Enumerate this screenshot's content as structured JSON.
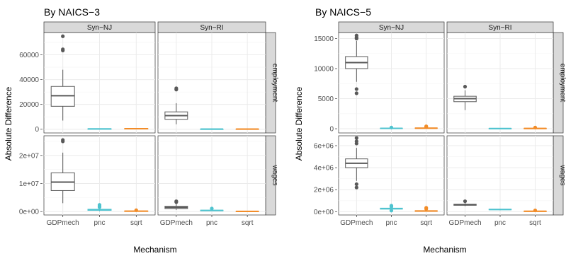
{
  "chart_data": [
    {
      "type": "boxplot",
      "title": "By NAICS−3",
      "xlabel": "Mechanism",
      "ylabel": "Absolute Difference",
      "categories": [
        "GDPmech",
        "pnc",
        "sqrt"
      ],
      "columns": [
        "Syn−NJ",
        "Syn−RI"
      ],
      "rows": [
        {
          "name": "employment",
          "ylim": [
            -3000,
            78000
          ],
          "ticks": [
            0,
            20000,
            40000,
            60000
          ],
          "tick_labels": [
            "0",
            "20000",
            "40000",
            "60000"
          ],
          "minor_ticks": [
            10000,
            30000,
            50000,
            70000
          ],
          "panels": [
            {
              "column": "Syn−NJ",
              "boxes": [
                {
                  "category": "GDPmech",
                  "color": "#595959",
                  "stats": {
                    "min": 7000,
                    "q1": 18500,
                    "median": 27000,
                    "q3": 34500,
                    "max": 48000
                  },
                  "outliers": [
                    63500,
                    64500,
                    75000
                  ]
                },
                {
                  "category": "pnc",
                  "color": "#4fc3cf",
                  "stats": {
                    "min": 50,
                    "q1": 200,
                    "median": 300,
                    "q3": 400,
                    "max": 600
                  },
                  "outliers": []
                },
                {
                  "category": "sqrt",
                  "color": "#f28c28",
                  "stats": {
                    "min": 100,
                    "q1": 250,
                    "median": 400,
                    "q3": 600,
                    "max": 900
                  },
                  "outliers": []
                }
              ]
            },
            {
              "column": "Syn−RI",
              "boxes": [
                {
                  "category": "GDPmech",
                  "color": "#595959",
                  "stats": {
                    "min": 4000,
                    "q1": 8000,
                    "median": 11000,
                    "q3": 14000,
                    "max": 21000
                  },
                  "outliers": [
                    32000,
                    33000
                  ]
                },
                {
                  "category": "pnc",
                  "color": "#4fc3cf",
                  "stats": {
                    "min": 20,
                    "q1": 80,
                    "median": 120,
                    "q3": 180,
                    "max": 300
                  },
                  "outliers": []
                },
                {
                  "category": "sqrt",
                  "color": "#f28c28",
                  "stats": {
                    "min": 30,
                    "q1": 100,
                    "median": 160,
                    "q3": 240,
                    "max": 400
                  },
                  "outliers": []
                }
              ]
            }
          ]
        },
        {
          "name": "wages",
          "ylim": [
            -1200000,
            27000000
          ],
          "ticks": [
            0,
            10000000,
            20000000
          ],
          "tick_labels": [
            "0e+00",
            "1e+07",
            "2e+07"
          ],
          "minor_ticks": [
            5000000,
            15000000,
            25000000
          ],
          "panels": [
            {
              "column": "Syn−NJ",
              "boxes": [
                {
                  "category": "GDPmech",
                  "color": "#595959",
                  "stats": {
                    "min": 3000000,
                    "q1": 7500000,
                    "median": 10500000,
                    "q3": 13800000,
                    "max": 21000000
                  },
                  "outliers": [
                    25000000,
                    25500000
                  ]
                },
                {
                  "category": "pnc",
                  "color": "#4fc3cf",
                  "stats": {
                    "min": 100000,
                    "q1": 450000,
                    "median": 650000,
                    "q3": 850000,
                    "max": 1200000
                  },
                  "outliers": [
                    1600000,
                    2000000,
                    2400000
                  ]
                },
                {
                  "category": "sqrt",
                  "color": "#f28c28",
                  "stats": {
                    "min": 20000,
                    "q1": 80000,
                    "median": 150000,
                    "q3": 250000,
                    "max": 400000
                  },
                  "outliers": [
                    500000
                  ]
                }
              ]
            },
            {
              "column": "Syn−RI",
              "boxes": [
                {
                  "category": "GDPmech",
                  "color": "#595959",
                  "stats": {
                    "min": 600000,
                    "q1": 1100000,
                    "median": 1500000,
                    "q3": 1900000,
                    "max": 2700000
                  },
                  "outliers": [
                    3400000,
                    3700000
                  ]
                },
                {
                  "category": "pnc",
                  "color": "#4fc3cf",
                  "stats": {
                    "min": 150000,
                    "q1": 300000,
                    "median": 400000,
                    "q3": 500000,
                    "max": 700000
                  },
                  "outliers": [
                    1100000
                  ]
                },
                {
                  "category": "sqrt",
                  "color": "#f28c28",
                  "stats": {
                    "min": 20000,
                    "q1": 60000,
                    "median": 100000,
                    "q3": 150000,
                    "max": 250000
                  },
                  "outliers": []
                }
              ]
            }
          ]
        }
      ]
    },
    {
      "type": "boxplot",
      "title": "By NAICS−5",
      "xlabel": "Mechanism",
      "ylabel": "Absolute Difference",
      "categories": [
        "GDPmech",
        "pnc",
        "sqrt"
      ],
      "columns": [
        "Syn−NJ",
        "Syn−RI"
      ],
      "rows": [
        {
          "name": "employment",
          "ylim": [
            -700,
            16000
          ],
          "ticks": [
            0,
            5000,
            10000,
            15000
          ],
          "tick_labels": [
            "0",
            "5000",
            "10000",
            "15000"
          ],
          "minor_ticks": [
            2500,
            7500,
            12500
          ],
          "panels": [
            {
              "column": "Syn−NJ",
              "boxes": [
                {
                  "category": "GDPmech",
                  "color": "#595959",
                  "stats": {
                    "min": 7800,
                    "q1": 10000,
                    "median": 11000,
                    "q3": 12000,
                    "max": 14600
                  },
                  "outliers": [
                    5900,
                    6600,
                    15000,
                    15200,
                    15500
                  ]
                },
                {
                  "category": "pnc",
                  "color": "#4fc3cf",
                  "stats": {
                    "min": 10,
                    "q1": 40,
                    "median": 70,
                    "q3": 100,
                    "max": 150
                  },
                  "outliers": [
                    200
                  ]
                },
                {
                  "category": "sqrt",
                  "color": "#f28c28",
                  "stats": {
                    "min": 10,
                    "q1": 50,
                    "median": 90,
                    "q3": 140,
                    "max": 220
                  },
                  "outliers": [
                    300,
                    400
                  ]
                }
              ]
            },
            {
              "column": "Syn−RI",
              "boxes": [
                {
                  "category": "GDPmech",
                  "color": "#595959",
                  "stats": {
                    "min": 3100,
                    "q1": 4500,
                    "median": 5000,
                    "q3": 5400,
                    "max": 6400
                  },
                  "outliers": [
                    7000
                  ]
                },
                {
                  "category": "pnc",
                  "color": "#4fc3cf",
                  "stats": {
                    "min": 5,
                    "q1": 20,
                    "median": 40,
                    "q3": 60,
                    "max": 90
                  },
                  "outliers": []
                },
                {
                  "category": "sqrt",
                  "color": "#f28c28",
                  "stats": {
                    "min": 5,
                    "q1": 25,
                    "median": 50,
                    "q3": 80,
                    "max": 130
                  },
                  "outliers": [
                    200
                  ]
                }
              ]
            }
          ]
        },
        {
          "name": "wages",
          "ylim": [
            -300000,
            6900000
          ],
          "ticks": [
            0,
            2000000,
            4000000,
            6000000
          ],
          "tick_labels": [
            "0e+00",
            "2e+06",
            "4e+06",
            "6e+06"
          ],
          "minor_ticks": [
            1000000,
            3000000,
            5000000
          ],
          "panels": [
            {
              "column": "Syn−NJ",
              "boxes": [
                {
                  "category": "GDPmech",
                  "color": "#595959",
                  "stats": {
                    "min": 2800000,
                    "q1": 4000000,
                    "median": 4400000,
                    "q3": 4800000,
                    "max": 5800000
                  },
                  "outliers": [
                    2200000,
                    2500000,
                    6200000,
                    6400000,
                    6700000
                  ]
                },
                {
                  "category": "pnc",
                  "color": "#4fc3cf",
                  "stats": {
                    "min": 150000,
                    "q1": 230000,
                    "median": 280000,
                    "q3": 320000,
                    "max": 400000
                  },
                  "outliers": [
                    100000,
                    450000,
                    550000
                  ]
                },
                {
                  "category": "sqrt",
                  "color": "#f28c28",
                  "stats": {
                    "min": 5000,
                    "q1": 30000,
                    "median": 60000,
                    "q3": 90000,
                    "max": 150000
                  },
                  "outliers": [
                    250000,
                    350000
                  ]
                }
              ]
            },
            {
              "column": "Syn−RI",
              "boxes": [
                {
                  "category": "GDPmech",
                  "color": "#595959",
                  "stats": {
                    "min": 500000,
                    "q1": 580000,
                    "median": 630000,
                    "q3": 680000,
                    "max": 800000
                  },
                  "outliers": [
                    950000
                  ]
                },
                {
                  "category": "pnc",
                  "color": "#4fc3cf",
                  "stats": {
                    "min": 120000,
                    "q1": 170000,
                    "median": 200000,
                    "q3": 230000,
                    "max": 280000
                  },
                  "outliers": []
                },
                {
                  "category": "sqrt",
                  "color": "#f28c28",
                  "stats": {
                    "min": 5000,
                    "q1": 20000,
                    "median": 40000,
                    "q3": 60000,
                    "max": 100000
                  },
                  "outliers": [
                    120000
                  ]
                }
              ]
            }
          ]
        }
      ]
    }
  ]
}
